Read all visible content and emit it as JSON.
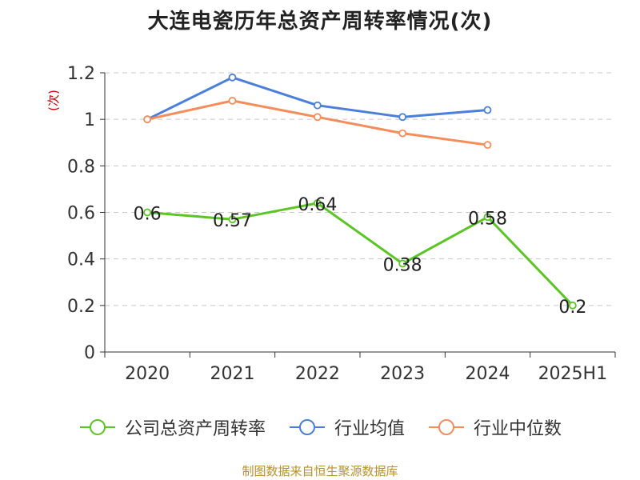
{
  "title": "大连电瓷历年总资产周转率情况(次)",
  "source": "制图数据来自恒生聚源数据库",
  "chart_data": {
    "type": "line",
    "title": "大连电瓷历年总资产周转率情况(次)",
    "ylabel": "(次)",
    "xlabel": "",
    "categories": [
      "2020",
      "2021",
      "2022",
      "2023",
      "2024",
      "2025H1"
    ],
    "ylim": [
      0,
      1.2
    ],
    "yticks": [
      "0",
      "0.2",
      "0.4",
      "0.6",
      "0.8",
      "1",
      "1.2"
    ],
    "grid": true,
    "legend_position": "bottom",
    "series": [
      {
        "name": "公司总资产周转率",
        "color": "#5cc526",
        "values": [
          0.6,
          0.57,
          0.64,
          0.38,
          0.58,
          0.2
        ],
        "labels": [
          "0.6",
          "0.57",
          "0.64",
          "0.38",
          "0.58",
          "0.2"
        ]
      },
      {
        "name": "行业均值",
        "color": "#4a7fdb",
        "values": [
          1.0,
          1.18,
          1.06,
          1.01,
          1.04,
          null
        ]
      },
      {
        "name": "行业中位数",
        "color": "#f58d5a",
        "values": [
          1.0,
          1.08,
          1.01,
          0.94,
          0.89,
          null
        ]
      }
    ]
  }
}
